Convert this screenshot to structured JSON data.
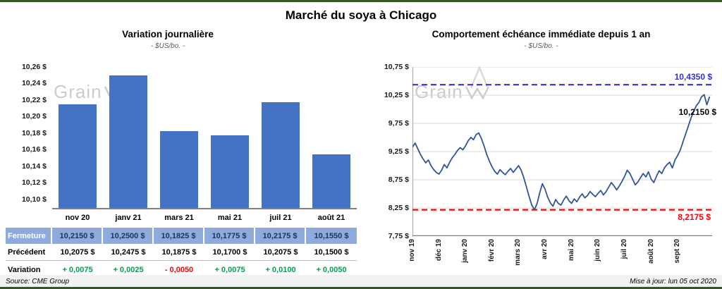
{
  "page": {
    "title": "Marché du soya à Chicago",
    "source": "Source: CME Group",
    "updated": "Mise à jour: lun 05 oct 2020",
    "watermark": "Grain"
  },
  "chart_data": [
    {
      "type": "bar",
      "title": "Variation journalière",
      "subtitle": "- $US/bo. -",
      "categories": [
        "nov 20",
        "janv 21",
        "mars 21",
        "mai 21",
        "juil 21",
        "août 21"
      ],
      "values": [
        10.215,
        10.25,
        10.1825,
        10.1775,
        10.2175,
        10.155
      ],
      "ylim": [
        10.09,
        10.26
      ],
      "yticks": [
        {
          "v": 10.26,
          "label": "10,26 $"
        },
        {
          "v": 10.24,
          "label": "10,24 $"
        },
        {
          "v": 10.22,
          "label": "10,22 $"
        },
        {
          "v": 10.2,
          "label": "10,20 $"
        },
        {
          "v": 10.18,
          "label": "10,18 $"
        },
        {
          "v": 10.16,
          "label": "10,16 $"
        },
        {
          "v": 10.14,
          "label": "10,14 $"
        },
        {
          "v": 10.12,
          "label": "10,12 $"
        },
        {
          "v": 10.1,
          "label": "10,10 $"
        }
      ],
      "bar_color": "#4472C4",
      "grid": false
    },
    {
      "type": "line",
      "title": "Comportement échéance immédiate depuis 1 an",
      "subtitle": "- $US/bo. -",
      "x_labels": [
        "nov 19",
        "déc 19",
        "janv 20",
        "févr 20",
        "mars 20",
        "avr 20",
        "mai 20",
        "juin 20",
        "juil 20",
        "août 20",
        "sept 20"
      ],
      "x_range": [
        0,
        11.3
      ],
      "points_per_month": 10,
      "ylim": [
        7.75,
        10.75
      ],
      "yticks": [
        {
          "v": 10.75,
          "label": "10,75 $"
        },
        {
          "v": 10.25,
          "label": "10,25 $"
        },
        {
          "v": 9.75,
          "label": "9,75 $"
        },
        {
          "v": 9.25,
          "label": "9,25 $"
        },
        {
          "v": 8.75,
          "label": "8,75 $"
        },
        {
          "v": 8.25,
          "label": "8,25 $"
        },
        {
          "v": 7.75,
          "label": "7,75 $"
        }
      ],
      "grid": true,
      "series": [
        {
          "name": "échéance immédiate",
          "color": "#2F5597",
          "values": [
            9.33,
            9.4,
            9.3,
            9.2,
            9.12,
            9.05,
            9.1,
            9.0,
            8.93,
            8.88,
            8.85,
            8.92,
            9.02,
            8.96,
            9.06,
            9.14,
            9.2,
            9.27,
            9.32,
            9.28,
            9.35,
            9.44,
            9.5,
            9.46,
            9.55,
            9.58,
            9.48,
            9.35,
            9.2,
            9.08,
            8.98,
            8.9,
            8.85,
            8.93,
            8.88,
            8.84,
            8.9,
            8.95,
            8.88,
            8.94,
            9.0,
            8.92,
            8.78,
            8.62,
            8.45,
            8.3,
            8.22,
            8.33,
            8.52,
            8.68,
            8.58,
            8.44,
            8.34,
            8.28,
            8.4,
            8.33,
            8.3,
            8.39,
            8.46,
            8.38,
            8.33,
            8.41,
            8.36,
            8.44,
            8.5,
            8.43,
            8.47,
            8.54,
            8.49,
            8.45,
            8.51,
            8.56,
            8.48,
            8.54,
            8.62,
            8.7,
            8.64,
            8.57,
            8.64,
            8.72,
            8.81,
            8.92,
            8.86,
            8.76,
            8.66,
            8.71,
            8.79,
            8.86,
            8.8,
            8.89,
            8.76,
            8.7,
            8.81,
            8.91,
            8.86,
            8.96,
            9.02,
            9.06,
            8.96,
            9.1,
            9.18,
            9.28,
            9.42,
            9.56,
            9.7,
            9.84,
            9.96,
            10.06,
            10.12,
            10.22,
            10.26,
            10.08,
            10.215
          ]
        }
      ],
      "ref_lines": [
        {
          "value": 10.435,
          "label": "10,4350 $",
          "color": "#3333CC",
          "style": "dashed"
        },
        {
          "value": 8.2175,
          "label": "8,2175 $",
          "color": "#FF0000",
          "style": "dashed"
        }
      ],
      "last_label": "10,2150 $"
    }
  ],
  "table": {
    "rows": [
      {
        "label": "Fermeture",
        "values": [
          "10,2150  $",
          "10,2500  $",
          "10,1825  $",
          "10,1775  $",
          "10,2175  $",
          "10,1550  $"
        ]
      },
      {
        "label": "Précédent",
        "values": [
          "10,2075  $",
          "10,2475  $",
          "10,1875  $",
          "10,1700  $",
          "10,2075  $",
          "10,1500  $"
        ]
      },
      {
        "label": "Variation",
        "values": [
          "+ 0,0075",
          "+ 0,0025",
          "- 0,0050",
          "+ 0,0075",
          "+ 0,0100",
          "+ 0,0050"
        ],
        "colors": [
          "pos",
          "pos",
          "neg",
          "pos",
          "pos",
          "pos"
        ]
      }
    ]
  }
}
